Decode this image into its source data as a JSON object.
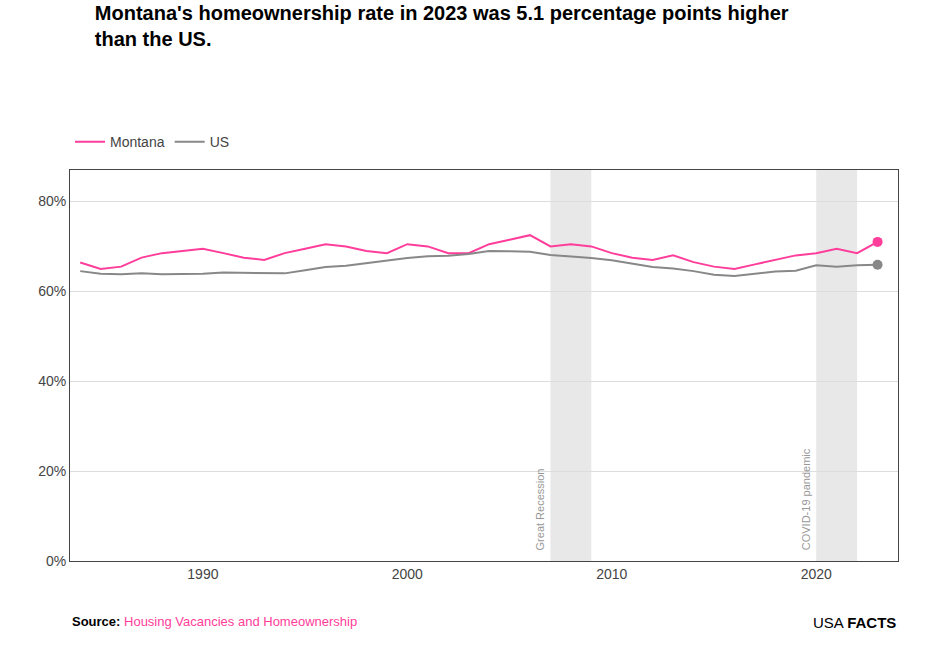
{
  "chart_data": {
    "type": "line",
    "title": "Montana's homeownership rate in 2023 was 5.1 percentage points higher\nthan the US.",
    "x": [
      1984,
      1985,
      1986,
      1987,
      1988,
      1989,
      1990,
      1991,
      1992,
      1993,
      1994,
      1995,
      1996,
      1997,
      1998,
      1999,
      2000,
      2001,
      2002,
      2003,
      2004,
      2005,
      2006,
      2007,
      2008,
      2009,
      2010,
      2011,
      2012,
      2013,
      2014,
      2015,
      2016,
      2017,
      2018,
      2019,
      2020,
      2021,
      2022,
      2023
    ],
    "series": [
      {
        "name": "Montana",
        "color": "#FF3D9A",
        "values": [
          66.4,
          65.0,
          65.5,
          67.5,
          68.5,
          69.0,
          69.5,
          68.5,
          67.5,
          67.0,
          68.5,
          69.5,
          70.5,
          70.0,
          69.0,
          68.5,
          70.5,
          70.0,
          68.5,
          68.5,
          70.5,
          71.5,
          72.5,
          70.0,
          70.5,
          70.0,
          68.5,
          67.5,
          67.0,
          68.0,
          66.5,
          65.5,
          65.0,
          66.0,
          67.0,
          68.0,
          68.5,
          69.5,
          68.5,
          71.0
        ]
      },
      {
        "name": "US",
        "color": "#888888",
        "values": [
          64.5,
          63.9,
          63.8,
          64.0,
          63.8,
          63.9,
          63.9,
          64.2,
          64.1,
          64.0,
          64.0,
          64.7,
          65.4,
          65.7,
          66.3,
          66.8,
          67.4,
          67.8,
          67.9,
          68.3,
          69.0,
          68.9,
          68.8,
          68.1,
          67.8,
          67.4,
          66.9,
          66.1,
          65.4,
          65.1,
          64.5,
          63.7,
          63.4,
          63.9,
          64.4,
          64.6,
          65.8,
          65.5,
          65.8,
          65.9
        ]
      }
    ],
    "xlim": [
      1983.5,
      2024
    ],
    "xticks": [
      1990,
      2000,
      2010,
      2020
    ],
    "ylim": [
      0,
      87
    ],
    "yticks": [
      {
        "value": 0,
        "label": "0%"
      },
      {
        "value": 20,
        "label": "20%"
      },
      {
        "value": 40,
        "label": "40%"
      },
      {
        "value": 60,
        "label": "60%"
      },
      {
        "value": 80,
        "label": "80%"
      }
    ],
    "grid": true,
    "legend": "upper left",
    "shaded": [
      {
        "start": 2007,
        "end": 2009,
        "color": "#e8e8e8"
      },
      {
        "start": 2020,
        "end": 2022,
        "color": "#e8e8e8"
      }
    ],
    "annotations": [
      {
        "text": "Great Recession",
        "x": 2007,
        "y": 2,
        "color": "#999999"
      },
      {
        "text": "COVID-19 pandemic",
        "x": 2020,
        "y": 2,
        "color": "#999999"
      }
    ],
    "source_label": "Source: ",
    "source": "Housing Vacancies and Homeownership",
    "branding": [
      "USA",
      "FACTS"
    ]
  }
}
